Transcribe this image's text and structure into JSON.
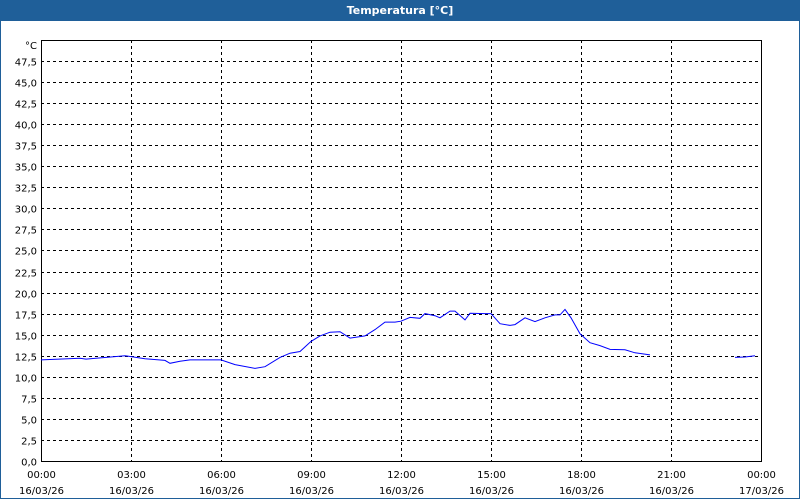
{
  "window": {
    "title": "Temperatura [°C]"
  },
  "chart_data": {
    "type": "line",
    "title": "Temperatura [°C]",
    "ylabel": "°C",
    "ylim": [
      0,
      47.5
    ],
    "yticks": [
      "0,0",
      "2,5",
      "5,0",
      "7,5",
      "10,0",
      "12,5",
      "15,0",
      "17,5",
      "20,0",
      "22,5",
      "25,0",
      "27,5",
      "30,0",
      "32,5",
      "35,0",
      "37,5",
      "40,0",
      "42,5",
      "45,0",
      "47,5"
    ],
    "xlim": [
      "16/03/26 00:00",
      "17/03/26 00:00"
    ],
    "xticks": [
      {
        "time": "00:00",
        "date": "16/03/26"
      },
      {
        "time": "03:00",
        "date": "16/03/26"
      },
      {
        "time": "06:00",
        "date": "16/03/26"
      },
      {
        "time": "09:00",
        "date": "16/03/26"
      },
      {
        "time": "12:00",
        "date": "16/03/26"
      },
      {
        "time": "15:00",
        "date": "16/03/26"
      },
      {
        "time": "18:00",
        "date": "16/03/26"
      },
      {
        "time": "21:00",
        "date": "16/03/26"
      },
      {
        "time": "00:00",
        "date": "17/03/26"
      }
    ],
    "grid": true,
    "color": "#0000ff",
    "points": [
      [
        "00:00",
        12.0
      ],
      [
        "01:18",
        12.2
      ],
      [
        "01:30",
        12.1
      ],
      [
        "02:48",
        12.5
      ],
      [
        "03:00",
        12.4
      ],
      [
        "03:28",
        12.15
      ],
      [
        "04:08",
        11.95
      ],
      [
        "04:18",
        11.6
      ],
      [
        "04:38",
        11.85
      ],
      [
        "04:58",
        12.0
      ],
      [
        "06:00",
        12.0
      ],
      [
        "06:28",
        11.45
      ],
      [
        "07:08",
        11.0
      ],
      [
        "07:28",
        11.2
      ],
      [
        "07:58",
        12.3
      ],
      [
        "08:18",
        12.8
      ],
      [
        "08:38",
        13.0
      ],
      [
        "09:00",
        14.2
      ],
      [
        "09:18",
        14.85
      ],
      [
        "09:38",
        15.3
      ],
      [
        "09:58",
        15.35
      ],
      [
        "10:18",
        14.6
      ],
      [
        "10:48",
        14.85
      ],
      [
        "11:08",
        15.6
      ],
      [
        "11:28",
        16.5
      ],
      [
        "11:48",
        16.5
      ],
      [
        "12:00",
        16.6
      ],
      [
        "12:18",
        17.05
      ],
      [
        "12:38",
        16.95
      ],
      [
        "12:48",
        17.5
      ],
      [
        "13:08",
        17.25
      ],
      [
        "13:18",
        17.0
      ],
      [
        "13:38",
        17.8
      ],
      [
        "13:48",
        17.8
      ],
      [
        "14:08",
        16.75
      ],
      [
        "14:18",
        17.55
      ],
      [
        "14:48",
        17.5
      ],
      [
        "15:00",
        17.5
      ],
      [
        "15:18",
        16.3
      ],
      [
        "15:38",
        16.1
      ],
      [
        "15:48",
        16.2
      ],
      [
        "16:08",
        17.0
      ],
      [
        "16:28",
        16.55
      ],
      [
        "16:48",
        17.0
      ],
      [
        "17:08",
        17.35
      ],
      [
        "17:18",
        17.35
      ],
      [
        "17:28",
        18.0
      ],
      [
        "17:40",
        17.0
      ],
      [
        "17:58",
        15.1
      ],
      [
        "18:18",
        14.05
      ],
      [
        "18:38",
        13.7
      ],
      [
        "18:58",
        13.25
      ],
      [
        "19:28",
        13.2
      ],
      [
        "19:48",
        12.85
      ],
      [
        "20:18",
        12.6
      ],
      null,
      [
        "23:08",
        12.3
      ],
      [
        "23:28",
        12.35
      ],
      [
        "23:48",
        12.5
      ]
    ]
  }
}
